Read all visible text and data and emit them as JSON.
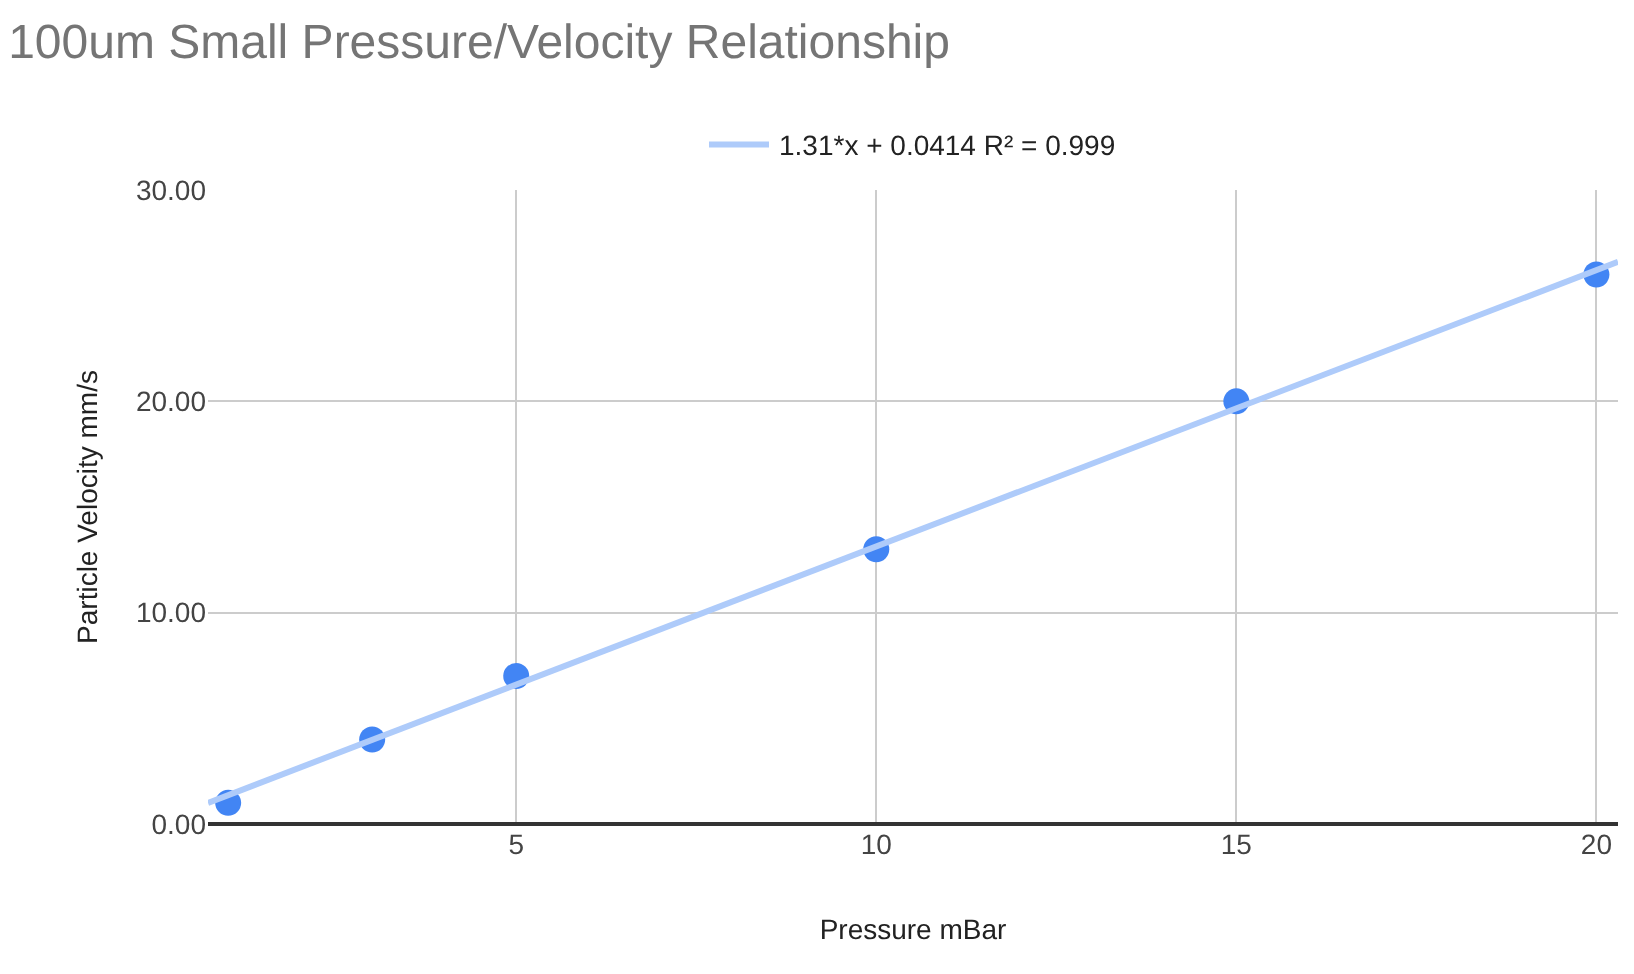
{
  "chart_data": {
    "type": "scatter",
    "title": "100um Small Pressure/Velocity Relationship",
    "xlabel": "Pressure mBar",
    "ylabel": "Particle Velocity mm/s",
    "x": [
      1,
      3,
      5,
      10,
      15,
      20
    ],
    "series": [
      {
        "color": "#4285f4",
        "marker": "circle",
        "values": [
          1,
          4,
          7,
          13,
          20,
          26
        ]
      },
      {
        "type": "line",
        "name": "1.31*x + 0.0414 R² = 0.999",
        "color": "#aecbfa",
        "marker": "none",
        "x": [
          0.72,
          20.3
        ],
        "values": [
          1.0,
          26.6
        ]
      }
    ],
    "xlim": [
      0.72,
      20.3
    ],
    "xticks": [
      5,
      10,
      15,
      20
    ],
    "ylim": [
      0,
      30
    ],
    "yticks": [
      {
        "value": 0,
        "label": "0.00"
      },
      {
        "value": 10,
        "label": "10.00"
      },
      {
        "value": 20,
        "label": "20.00"
      },
      {
        "value": 30,
        "label": "30.00"
      }
    ],
    "grid": true,
    "legend": "top"
  }
}
